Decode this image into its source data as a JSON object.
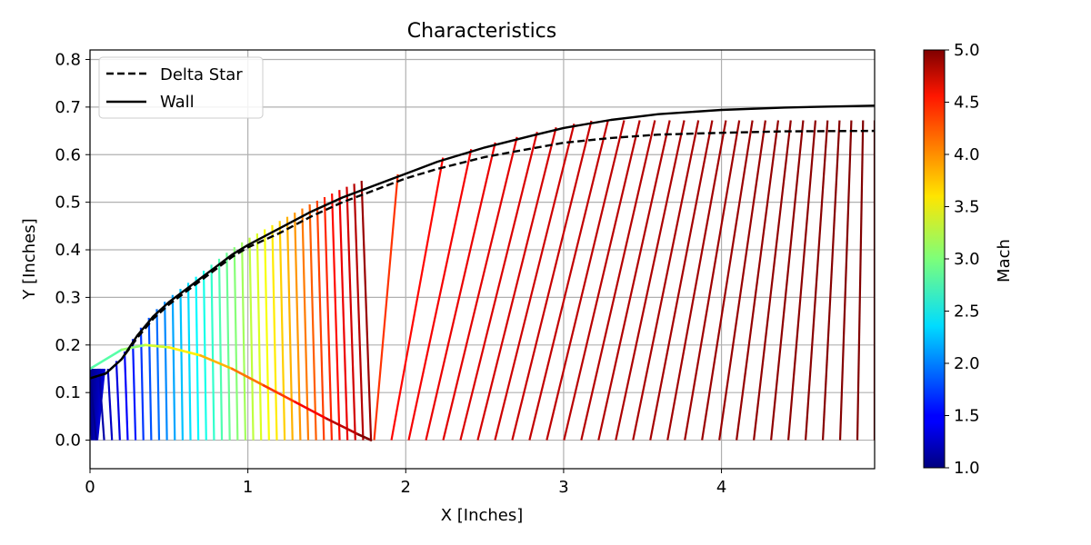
{
  "chart_data": {
    "type": "line",
    "title": "Characteristics",
    "xlabel": "X [Inches]",
    "ylabel": "Y [Inches]",
    "xlim": [
      0,
      4.97
    ],
    "ylim": [
      -0.06,
      0.82
    ],
    "xticks": [
      0,
      1,
      2,
      3,
      4
    ],
    "yticks": [
      0.0,
      0.1,
      0.2,
      0.3,
      0.4,
      0.5,
      0.6,
      0.7,
      0.8
    ],
    "grid": true,
    "legend": {
      "placement": "upper-left",
      "entries": [
        "Delta Star",
        "Wall"
      ]
    },
    "series": [
      {
        "name": "Wall",
        "style": "solid",
        "color": "#000000",
        "x": [
          0,
          0.1,
          0.2,
          0.3,
          0.4,
          0.5,
          0.6,
          0.7,
          0.8,
          0.9,
          1.0,
          1.2,
          1.4,
          1.6,
          1.8,
          2.0,
          2.2,
          2.5,
          2.8,
          3.0,
          3.3,
          3.6,
          4.0,
          4.4,
          4.97
        ],
        "y": [
          0.13,
          0.14,
          0.17,
          0.22,
          0.26,
          0.29,
          0.315,
          0.34,
          0.365,
          0.39,
          0.41,
          0.445,
          0.48,
          0.51,
          0.535,
          0.56,
          0.585,
          0.615,
          0.64,
          0.656,
          0.673,
          0.685,
          0.694,
          0.699,
          0.703
        ]
      },
      {
        "name": "Delta Star",
        "style": "dashed",
        "color": "#000000",
        "x": [
          0,
          0.1,
          0.2,
          0.3,
          0.4,
          0.5,
          0.6,
          0.7,
          0.8,
          0.9,
          1.0,
          1.2,
          1.4,
          1.6,
          1.8,
          2.0,
          2.2,
          2.5,
          2.8,
          3.0,
          3.3,
          3.6,
          4.0,
          4.4,
          4.97
        ],
        "y": [
          0.13,
          0.14,
          0.17,
          0.215,
          0.255,
          0.285,
          0.31,
          0.335,
          0.36,
          0.385,
          0.405,
          0.435,
          0.47,
          0.5,
          0.525,
          0.55,
          0.57,
          0.595,
          0.613,
          0.625,
          0.635,
          0.642,
          0.646,
          0.649,
          0.65
        ]
      }
    ],
    "expansion_curve": {
      "x": [
        0,
        0.2,
        0.35,
        0.5,
        0.7,
        0.9,
        1.1,
        1.3,
        1.5,
        1.7,
        1.78
      ],
      "y": [
        0.15,
        0.19,
        0.2,
        0.195,
        0.178,
        0.15,
        0.115,
        0.08,
        0.045,
        0.012,
        0.0
      ],
      "mach_start": 2.6,
      "mach_end": 5.0
    },
    "characteristics": {
      "fan_lines": {
        "count": 36,
        "base_x_range": [
          0.04,
          1.78
        ],
        "tip_x_range": [
          0.0,
          1.72
        ],
        "mach_range": [
          1.05,
          4.9
        ]
      },
      "parallel_lines": {
        "count": 30,
        "base_x_range": [
          1.8,
          4.97
        ],
        "tip_x_range": [
          1.95,
          4.97
        ],
        "mach_range": [
          4.3,
          5.0
        ]
      }
    },
    "colorbar": {
      "label": "Mach",
      "range": [
        1.0,
        5.0
      ],
      "ticks": [
        "1.0",
        "1.5",
        "2.0",
        "2.5",
        "3.0",
        "3.5",
        "4.0",
        "4.5",
        "5.0"
      ],
      "colormap": "jet"
    }
  }
}
